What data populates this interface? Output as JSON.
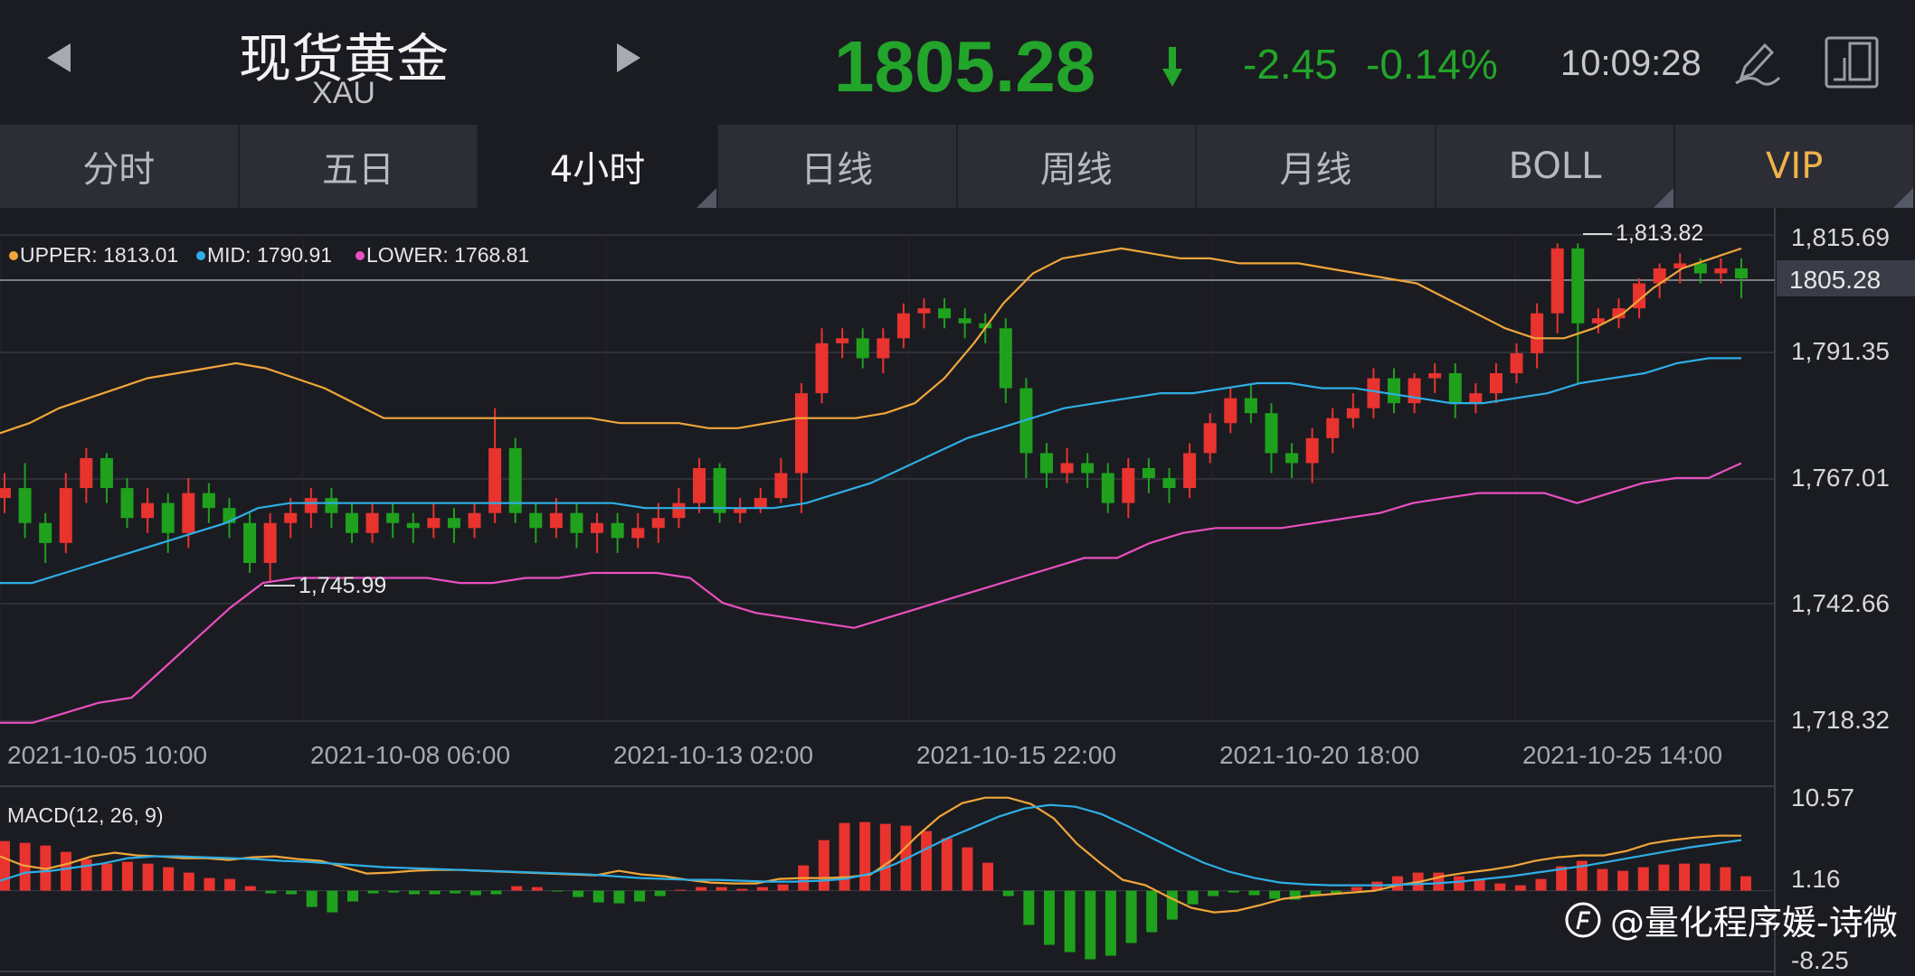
{
  "header": {
    "title": "现货黄金",
    "symbol": "XAU",
    "price": "1805.28",
    "change": "-2.45",
    "change_pct": "-0.14%",
    "time": "10:09:28",
    "price_color": "#22a52a"
  },
  "tabs": [
    {
      "label": "分时"
    },
    {
      "label": "五日"
    },
    {
      "label": "4小时"
    },
    {
      "label": "日线"
    },
    {
      "label": "周线"
    },
    {
      "label": "月线"
    },
    {
      "label": "BOLL"
    },
    {
      "label": "VIP"
    }
  ],
  "legend": {
    "upper": "UPPER: 1813.01",
    "mid": "MID: 1790.91",
    "lower": "LOWER: 1768.81"
  },
  "colors": {
    "up": "#e8332f",
    "down": "#1fa11e",
    "upper": "#f0a63a",
    "mid": "#2eaee6",
    "lower": "#ea4fc2",
    "dif": "#f0a63a",
    "dea": "#2eaee6",
    "grid": "#2f3038"
  },
  "chart_data": {
    "type": "candlestick",
    "y_ticks": [
      "1,815.69",
      "1,791.35",
      "1,767.01",
      "1,742.66",
      "1,718.32"
    ],
    "ylim": [
      1718.32,
      1815.69
    ],
    "x_ticks": [
      "2021-10-05 10:00",
      "2021-10-08 06:00",
      "2021-10-13 02:00",
      "2021-10-15 22:00",
      "2021-10-20 18:00",
      "2021-10-25 14:00"
    ],
    "current_price_label": "1805.28",
    "annotations": {
      "high": "1,813.82",
      "low": "1,745.99"
    },
    "candles": [
      [
        1763,
        1765,
        1768,
        1760
      ],
      [
        1765,
        1758,
        1770,
        1755
      ],
      [
        1758,
        1754,
        1760,
        1750
      ],
      [
        1754,
        1765,
        1768,
        1752
      ],
      [
        1765,
        1771,
        1773,
        1762
      ],
      [
        1771,
        1765,
        1772,
        1762
      ],
      [
        1765,
        1759,
        1767,
        1757
      ],
      [
        1759,
        1762,
        1765,
        1756
      ],
      [
        1762,
        1756,
        1764,
        1752
      ],
      [
        1756,
        1764,
        1767,
        1753
      ],
      [
        1764,
        1761,
        1766,
        1758
      ],
      [
        1761,
        1758,
        1763,
        1755
      ],
      [
        1758,
        1750,
        1760,
        1748
      ],
      [
        1750,
        1758,
        1760,
        1746
      ],
      [
        1758,
        1760,
        1763,
        1755
      ],
      [
        1760,
        1763,
        1765,
        1757
      ],
      [
        1763,
        1760,
        1765,
        1757
      ],
      [
        1760,
        1756,
        1762,
        1754
      ],
      [
        1756,
        1760,
        1762,
        1754
      ],
      [
        1760,
        1758,
        1762,
        1755
      ],
      [
        1758,
        1757,
        1760,
        1754
      ],
      [
        1757,
        1759,
        1762,
        1755
      ],
      [
        1759,
        1757,
        1761,
        1754
      ],
      [
        1757,
        1760,
        1762,
        1755
      ],
      [
        1760,
        1773,
        1781,
        1758
      ],
      [
        1773,
        1760,
        1775,
        1758
      ],
      [
        1760,
        1757,
        1762,
        1754
      ],
      [
        1757,
        1760,
        1763,
        1755
      ],
      [
        1760,
        1756,
        1762,
        1753
      ],
      [
        1756,
        1758,
        1760,
        1752
      ],
      [
        1758,
        1755,
        1760,
        1752
      ],
      [
        1755,
        1757,
        1760,
        1753
      ],
      [
        1757,
        1759,
        1762,
        1754
      ],
      [
        1759,
        1762,
        1765,
        1757
      ],
      [
        1762,
        1769,
        1771,
        1760
      ],
      [
        1769,
        1760,
        1770,
        1758
      ],
      [
        1760,
        1761,
        1763,
        1758
      ],
      [
        1761,
        1763,
        1765,
        1760
      ],
      [
        1763,
        1768,
        1771,
        1762
      ],
      [
        1768,
        1784,
        1786,
        1760
      ],
      [
        1784,
        1794,
        1797,
        1782
      ],
      [
        1794,
        1795,
        1797,
        1791
      ],
      [
        1795,
        1791,
        1797,
        1789
      ],
      [
        1791,
        1795,
        1797,
        1788
      ],
      [
        1795,
        1800,
        1802,
        1793
      ],
      [
        1800,
        1801,
        1803,
        1797
      ],
      [
        1801,
        1799,
        1803,
        1797
      ],
      [
        1799,
        1798,
        1801,
        1795
      ],
      [
        1798,
        1797,
        1800,
        1794
      ],
      [
        1797,
        1785,
        1799,
        1782
      ],
      [
        1785,
        1772,
        1787,
        1767
      ],
      [
        1772,
        1768,
        1774,
        1765
      ],
      [
        1768,
        1770,
        1773,
        1766
      ],
      [
        1770,
        1768,
        1772,
        1765
      ],
      [
        1768,
        1762,
        1770,
        1760
      ],
      [
        1762,
        1769,
        1771,
        1759
      ],
      [
        1769,
        1767,
        1771,
        1764
      ],
      [
        1767,
        1765,
        1769,
        1762
      ],
      [
        1765,
        1772,
        1774,
        1763
      ],
      [
        1772,
        1778,
        1780,
        1770
      ],
      [
        1778,
        1783,
        1785,
        1776
      ],
      [
        1783,
        1780,
        1786,
        1778
      ],
      [
        1780,
        1772,
        1782,
        1768
      ],
      [
        1772,
        1770,
        1774,
        1767
      ],
      [
        1770,
        1775,
        1777,
        1766
      ],
      [
        1775,
        1779,
        1781,
        1772
      ],
      [
        1779,
        1781,
        1784,
        1777
      ],
      [
        1781,
        1787,
        1789,
        1779
      ],
      [
        1787,
        1782,
        1789,
        1780
      ],
      [
        1782,
        1787,
        1788,
        1780
      ],
      [
        1787,
        1788,
        1790,
        1784
      ],
      [
        1788,
        1782,
        1790,
        1779
      ],
      [
        1782,
        1784,
        1786,
        1780
      ],
      [
        1784,
        1788,
        1790,
        1782
      ],
      [
        1788,
        1792,
        1794,
        1786
      ],
      [
        1792,
        1800,
        1802,
        1789
      ],
      [
        1800,
        1813,
        1814,
        1796
      ],
      [
        1813,
        1798,
        1814,
        1786
      ],
      [
        1798,
        1799,
        1801,
        1796
      ],
      [
        1799,
        1801,
        1803,
        1797
      ],
      [
        1801,
        1806,
        1807,
        1799
      ],
      [
        1806,
        1809,
        1810,
        1803
      ],
      [
        1809,
        1810,
        1812,
        1806
      ],
      [
        1810,
        1808,
        1811,
        1806
      ],
      [
        1808,
        1809,
        1811,
        1806
      ],
      [
        1809,
        1807,
        1811,
        1803
      ]
    ],
    "upper_band": [
      1776,
      1778,
      1781,
      1783,
      1785,
      1787,
      1788,
      1789,
      1790,
      1789,
      1787,
      1785,
      1782,
      1779,
      1779,
      1779,
      1779,
      1779,
      1779,
      1779,
      1779,
      1778,
      1778,
      1778,
      1777,
      1777,
      1778,
      1779,
      1779,
      1779,
      1780,
      1782,
      1787,
      1794,
      1802,
      1808,
      1811,
      1812,
      1813,
      1812,
      1811,
      1811,
      1810,
      1810,
      1810,
      1809,
      1808,
      1807,
      1806,
      1803,
      1800,
      1797,
      1795,
      1795,
      1797,
      1800,
      1805,
      1809,
      1811,
      1813
    ],
    "mid_band": [
      1746,
      1746,
      1748,
      1750,
      1752,
      1754,
      1756,
      1758,
      1761,
      1762,
      1762,
      1762,
      1762,
      1762,
      1762,
      1762,
      1762,
      1762,
      1762,
      1762,
      1761,
      1761,
      1761,
      1761,
      1761,
      1762,
      1764,
      1766,
      1769,
      1772,
      1775,
      1777,
      1779,
      1781,
      1782,
      1783,
      1784,
      1784,
      1785,
      1786,
      1786,
      1785,
      1785,
      1784,
      1783,
      1782,
      1782,
      1783,
      1784,
      1786,
      1787,
      1788,
      1790,
      1791,
      1791
    ],
    "lower_band": [
      1718,
      1718,
      1720,
      1722,
      1723,
      1729,
      1735,
      1741,
      1746,
      1747,
      1747,
      1747,
      1747,
      1747,
      1746,
      1746,
      1747,
      1747,
      1748,
      1748,
      1748,
      1747,
      1742,
      1740,
      1739,
      1738,
      1737,
      1739,
      1741,
      1743,
      1745,
      1747,
      1749,
      1751,
      1751,
      1754,
      1756,
      1757,
      1757,
      1757,
      1758,
      1759,
      1760,
      1762,
      1763,
      1764,
      1764,
      1764,
      1762,
      1764,
      1766,
      1767,
      1767,
      1770
    ],
    "macd": {
      "label": "MACD(12, 26, 9)",
      "y_ticks": [
        "10.57",
        "1.16",
        "-8.25"
      ],
      "ylim": [
        -8.25,
        10.57
      ],
      "hist": [
        5.5,
        5.3,
        5.0,
        4.3,
        3.5,
        3.0,
        3.2,
        3.0,
        2.6,
        2.0,
        1.4,
        1.3,
        0.5,
        -0.3,
        -0.4,
        -1.8,
        -2.4,
        -1.2,
        -0.3,
        -0.2,
        -0.4,
        -0.4,
        -0.3,
        -0.5,
        -0.4,
        0.5,
        0.4,
        -0.1,
        -0.7,
        -1.3,
        -1.4,
        -1.2,
        -0.6,
        0.1,
        0.4,
        0.4,
        0.2,
        0.4,
        0.7,
        2.8,
        5.6,
        7.5,
        7.6,
        7.4,
        7.2,
        6.6,
        5.8,
        4.8,
        3.1,
        -0.6,
        -3.8,
        -6.0,
        -6.8,
        -7.6,
        -7.2,
        -5.8,
        -4.6,
        -3.2,
        -1.5,
        -0.6,
        -0.2,
        -0.5,
        -0.9,
        -1.0,
        -0.6,
        -0.3,
        0.4,
        1.0,
        1.6,
        2.0,
        2.0,
        1.6,
        1.3,
        0.8,
        0.6,
        1.3,
        2.7,
        3.3,
        2.4,
        2.2,
        2.6,
        2.9,
        3.0,
        3.0,
        2.6,
        1.6
      ],
      "dif": [
        3.8,
        2.8,
        2.4,
        3.0,
        3.8,
        4.2,
        3.9,
        3.8,
        3.6,
        3.6,
        3.4,
        3.7,
        3.8,
        3.5,
        3.3,
        2.6,
        1.9,
        2.0,
        2.2,
        2.3,
        2.3,
        2.2,
        2.1,
        2.0,
        1.9,
        1.8,
        1.7,
        2.2,
        1.8,
        1.6,
        1.2,
        0.9,
        0.8,
        0.8,
        1.3,
        1.4,
        1.4,
        1.5,
        1.8,
        3.5,
        6.0,
        8.2,
        9.7,
        10.3,
        10.3,
        9.6,
        8.0,
        5.2,
        3.1,
        1.2,
        0.6,
        -0.7,
        -1.9,
        -2.4,
        -2.2,
        -1.6,
        -0.9,
        -0.6,
        -0.4,
        -0.2,
        0.0,
        0.6,
        1.0,
        1.6,
        2.0,
        2.3,
        2.7,
        3.3,
        3.7,
        3.9,
        3.9,
        4.4,
        5.2,
        5.6,
        5.9,
        6.1,
        6.1
      ],
      "dea": [
        1.1,
        2.0,
        2.2,
        2.6,
        3.0,
        3.6,
        3.8,
        3.8,
        3.7,
        3.6,
        3.5,
        3.3,
        3.2,
        3.0,
        2.8,
        2.6,
        2.5,
        2.4,
        2.3,
        2.2,
        2.1,
        2.0,
        1.9,
        1.8,
        1.6,
        1.4,
        1.3,
        1.2,
        1.2,
        1.1,
        1.0,
        1.0,
        1.1,
        1.3,
        1.9,
        3.0,
        4.4,
        5.8,
        7.0,
        8.2,
        9.1,
        9.5,
        9.3,
        8.5,
        7.2,
        5.8,
        4.4,
        3.1,
        2.1,
        1.4,
        0.9,
        0.7,
        0.6,
        0.6,
        0.6,
        0.7,
        0.8,
        1.0,
        1.3,
        1.6,
        2.0,
        2.4,
        2.8,
        3.3,
        3.8,
        4.3,
        4.8,
        5.2,
        5.6
      ]
    }
  },
  "watermark": "@量化程序媛-诗微"
}
